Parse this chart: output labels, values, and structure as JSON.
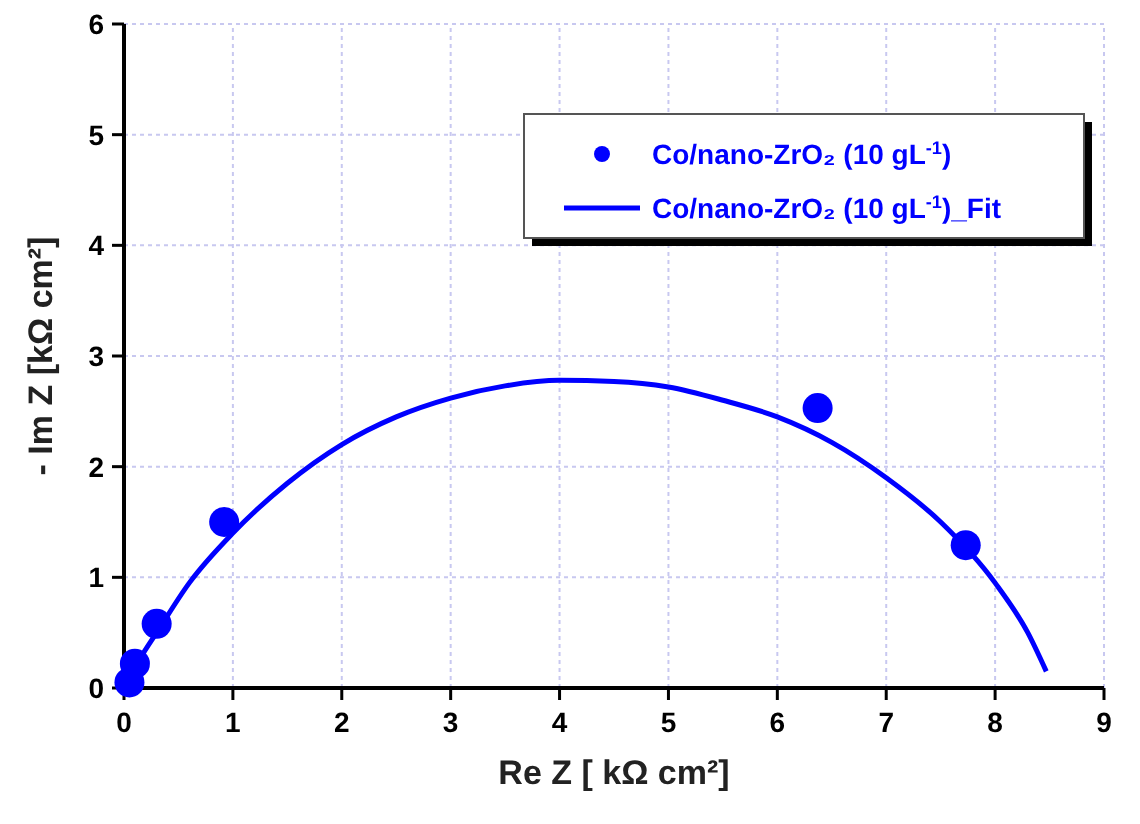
{
  "chart_data": {
    "type": "scatter",
    "xlabel": "Re Z [ kΩ cm²]",
    "ylabel": "- Im Z [kΩ cm²]",
    "xlim": [
      0,
      9
    ],
    "ylim": [
      0,
      6
    ],
    "xticks": [
      0,
      1,
      2,
      3,
      4,
      5,
      6,
      7,
      8,
      9
    ],
    "yticks": [
      0,
      1,
      2,
      3,
      4,
      5,
      6
    ],
    "grid": true,
    "legend": "top right",
    "series": [
      {
        "name": "Co/nano-ZrO₂ (10 gL$^{-1}$)",
        "marker": "circle",
        "color": "#0000ff",
        "x": [
          0.05,
          0.1,
          0.3,
          0.92,
          6.37,
          7.73
        ],
        "values": [
          0.05,
          0.22,
          0.58,
          1.5,
          2.53,
          1.29
        ]
      },
      {
        "name": "Co/nano-ZrO₂ (10 gL$^{-1}$)_Fit",
        "type": "line",
        "line_style": "solid",
        "color": "#0000ff",
        "x": [
          0,
          0.15,
          0.3,
          0.6,
          1,
          1.5,
          2,
          2.5,
          3,
          3.5,
          4,
          4.5,
          5,
          5.5,
          6,
          6.5,
          7,
          7.5,
          8,
          8.3,
          8.47
        ],
        "values": [
          0,
          0.27,
          0.5,
          0.95,
          1.4,
          1.85,
          2.2,
          2.45,
          2.62,
          2.73,
          2.78,
          2.77,
          2.72,
          2.6,
          2.45,
          2.22,
          1.9,
          1.5,
          0.95,
          0.5,
          0.15
        ]
      }
    ]
  }
}
